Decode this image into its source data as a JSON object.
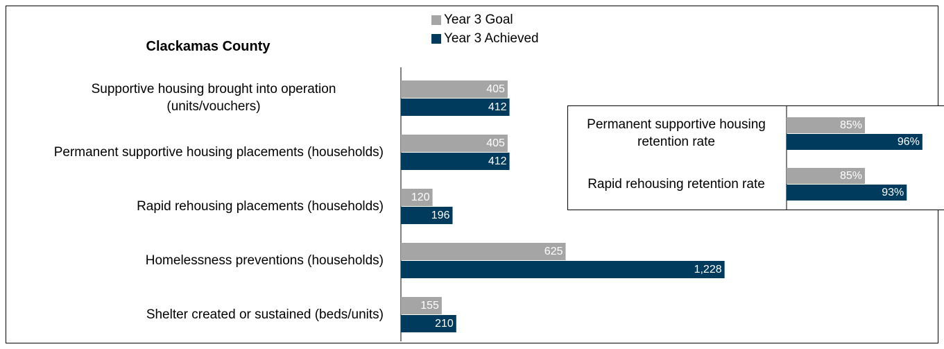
{
  "chart_data": [
    {
      "type": "bar",
      "orientation": "horizontal",
      "title": "Clackamas County",
      "categories": [
        "Supportive housing brought into operation (units/vouchers)",
        "Permanent supportive housing placements (households)",
        "Rapid rehousing placements (households)",
        "Homelessness preventions (households)",
        "Shelter created or sustained (beds/units)"
      ],
      "series": [
        {
          "name": "Year 3 Goal",
          "color": "#a5a5a5",
          "values": [
            405,
            405,
            120,
            625,
            155
          ]
        },
        {
          "name": "Year 3 Achieved",
          "color": "#003a5d",
          "values": [
            412,
            412,
            196,
            1228,
            210
          ],
          "value_labels": [
            "412",
            "412",
            "196",
            "1,228",
            "210"
          ]
        }
      ],
      "xlim": [
        0,
        2000
      ]
    },
    {
      "type": "bar",
      "orientation": "horizontal",
      "categories": [
        "Permanent supportive housing retention rate",
        "Rapid rehousing retention rate"
      ],
      "series": [
        {
          "color": "#a5a5a5",
          "values": [
            85,
            85
          ],
          "value_labels": [
            "85%",
            "85%"
          ]
        },
        {
          "color": "#003a5d",
          "values": [
            96,
            93
          ],
          "value_labels": [
            "96%",
            "93%"
          ]
        }
      ],
      "xlim": [
        70,
        100
      ]
    }
  ]
}
